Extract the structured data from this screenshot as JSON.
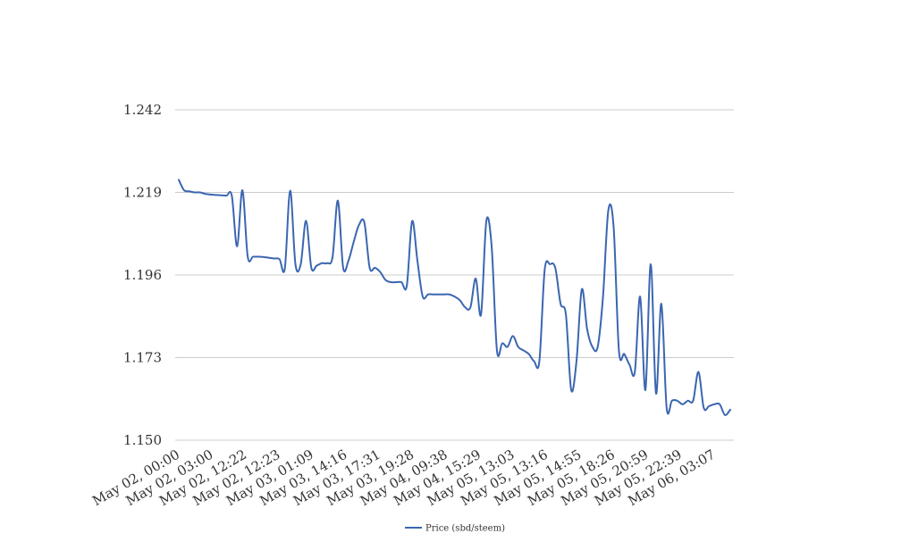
{
  "chart_data": {
    "type": "line",
    "title": "",
    "xlabel": "",
    "ylabel": "",
    "ylim": [
      1.15,
      1.242
    ],
    "y_ticks": [
      "1.150",
      "1.173",
      "1.196",
      "1.219",
      "1.242"
    ],
    "x_tick_labels": [
      "May 02, 00:00",
      "May 02, 03:00",
      "May 02, 12:22",
      "May 02, 12:23",
      "May 03, 01:09",
      "May 03, 14:16",
      "May 03, 17:31",
      "May 03, 19:28",
      "May 04, 09:38",
      "May 04, 15:29",
      "May 05, 13:03",
      "May 05, 13:16",
      "May 05, 14:55",
      "May 05, 18:26",
      "May 05, 20:59",
      "May 05, 22:39",
      "May 06, 03:07"
    ],
    "grid": true,
    "legend_position": "bottom",
    "series": [
      {
        "name": "Price (sbd/steem)",
        "color": "#3b66b0",
        "values": [
          1.2225,
          1.2196,
          1.2193,
          1.219,
          1.219,
          1.2186,
          1.2184,
          1.2183,
          1.2182,
          1.2181,
          1.2181,
          1.204,
          1.2196,
          1.2011,
          1.2011,
          1.2011,
          1.201,
          1.2008,
          1.2006,
          1.2004,
          1.1978,
          1.2195,
          1.199,
          1.199,
          1.2111,
          1.198,
          1.1986,
          1.1993,
          1.1993,
          1.201,
          1.2167,
          1.198,
          1.2,
          1.2053,
          1.21,
          1.2106,
          1.198,
          1.198,
          1.1968,
          1.1946,
          1.194,
          1.194,
          1.194,
          1.193,
          1.211,
          1.2,
          1.19,
          1.1906,
          1.1906,
          1.1906,
          1.1906,
          1.1906,
          1.19,
          1.189,
          1.187,
          1.187,
          1.195,
          1.185,
          1.211,
          1.204,
          1.175,
          1.177,
          1.176,
          1.179,
          1.176,
          1.175,
          1.174,
          1.172,
          1.172,
          1.1974,
          1.199,
          1.198,
          1.188,
          1.185,
          1.164,
          1.172,
          1.192,
          1.181,
          1.176,
          1.176,
          1.19,
          1.214,
          1.2094,
          1.175,
          1.174,
          1.171,
          1.169,
          1.19,
          1.164,
          1.199,
          1.163,
          1.188,
          1.159,
          1.161,
          1.161,
          1.16,
          1.161,
          1.161,
          1.169,
          1.159,
          1.1595,
          1.16,
          1.16,
          1.157,
          1.1585
        ]
      }
    ]
  }
}
